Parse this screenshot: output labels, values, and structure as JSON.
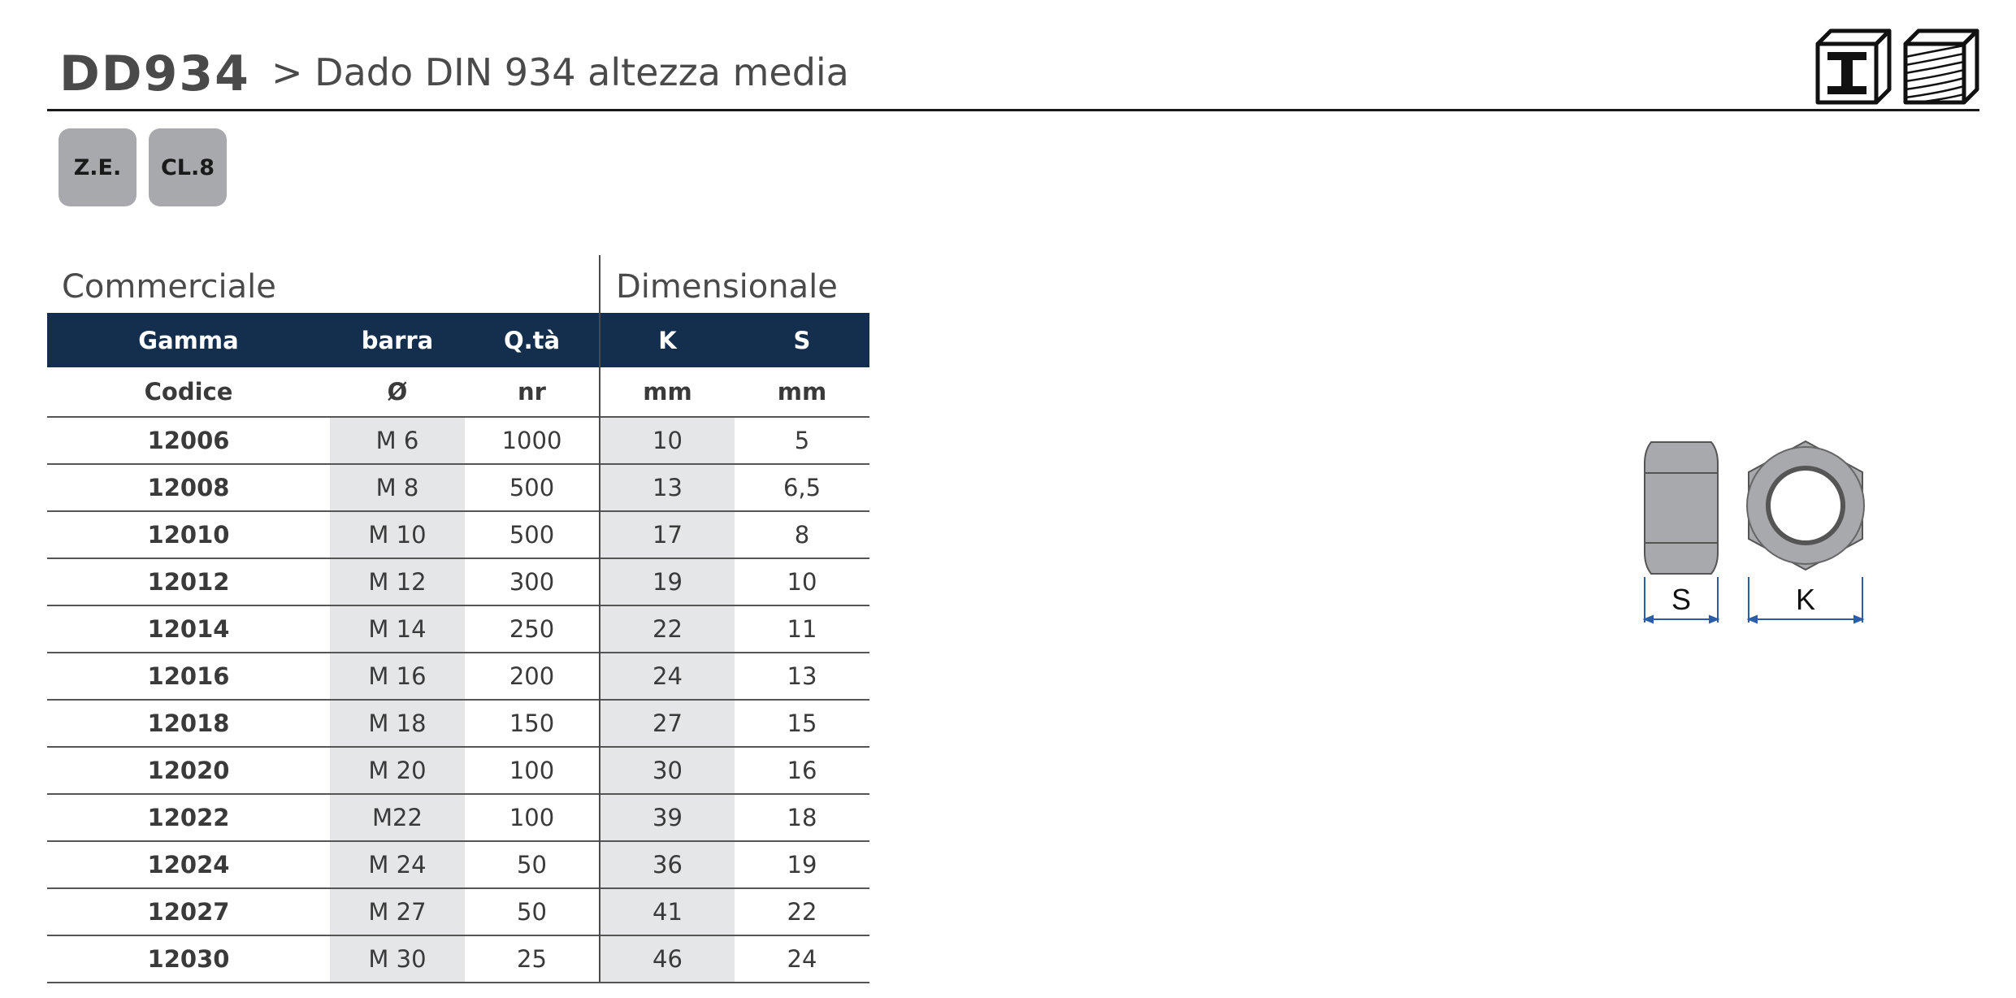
{
  "header": {
    "code": "DD934",
    "subtitle": "> Dado DIN 934 altezza media"
  },
  "badges": [
    "Z.E.",
    "CL.8"
  ],
  "sections": {
    "commerciale": "Commerciale",
    "dimensionale": "Dimensionale"
  },
  "table": {
    "headers": [
      "Gamma",
      "barra",
      "Q.tà",
      "K",
      "S"
    ],
    "units": [
      "Codice",
      "Ø",
      "nr",
      "mm",
      "mm"
    ],
    "rows": [
      [
        "12006",
        "M  6",
        "1000",
        "10",
        "5"
      ],
      [
        "12008",
        "M  8",
        "500",
        "13",
        "6,5"
      ],
      [
        "12010",
        "M 10",
        "500",
        "17",
        "8"
      ],
      [
        "12012",
        "M 12",
        "300",
        "19",
        "10"
      ],
      [
        "12014",
        "M 14",
        "250",
        "22",
        "11"
      ],
      [
        "12016",
        "M 16",
        "200",
        "24",
        "13"
      ],
      [
        "12018",
        "M 18",
        "150",
        "27",
        "15"
      ],
      [
        "12020",
        "M 20",
        "100",
        "30",
        "16"
      ],
      [
        "12022",
        "M22",
        "100",
        "39",
        "18"
      ],
      [
        "12024",
        "M 24",
        "50",
        "36",
        "19"
      ],
      [
        "12027",
        "M 27",
        "50",
        "41",
        "22"
      ],
      [
        "12030",
        "M 30",
        "25",
        "46",
        "24"
      ]
    ]
  },
  "diagram": {
    "label_s": "S",
    "label_k": "K"
  },
  "colors": {
    "header_bg": "#142f4d",
    "shade": "#e5e6e8",
    "badge": "#a7a9ac",
    "dimension_line": "#2a5fa8"
  },
  "icons": [
    "steel-beam-icon",
    "wood-grain-icon"
  ]
}
